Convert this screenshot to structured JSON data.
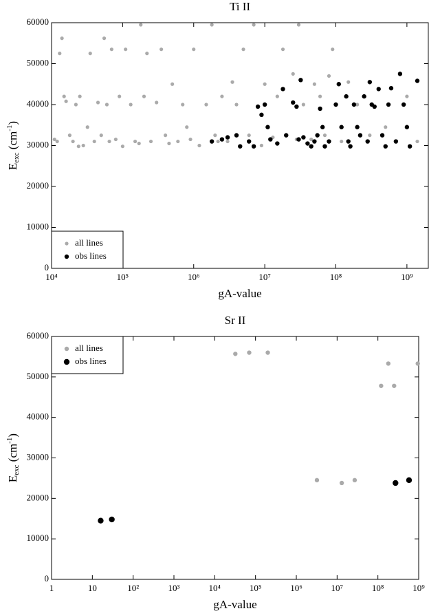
{
  "chart_data": [
    {
      "type": "scatter",
      "title": "Ti II",
      "xlabel": "gA-value",
      "ylabel": {
        "base": "E",
        "sub": "exc",
        "mid": " (cm",
        "sup": "-1",
        "end": ")"
      },
      "log_x": true,
      "legend": "lower left",
      "xlim": [
        10000,
        2000000000
      ],
      "ylim": [
        0,
        60000
      ],
      "xticks": [
        {
          "value": 10000,
          "label": "10⁴"
        },
        {
          "value": 100000,
          "label": "10⁵"
        },
        {
          "value": 1000000,
          "label": "10⁶"
        },
        {
          "value": 10000000,
          "label": "10⁷"
        },
        {
          "value": 100000000,
          "label": "10⁸"
        },
        {
          "value": 1000000000,
          "label": "10⁹"
        }
      ],
      "yticks": [
        0,
        10000,
        20000,
        30000,
        40000,
        50000,
        60000
      ],
      "series": [
        {
          "name": "all lines",
          "color": "#aaaaaa",
          "x": [
            12000,
            13000,
            14000,
            15000,
            16000,
            18000,
            20000,
            22000,
            25000,
            28000,
            32000,
            35000,
            40000,
            45000,
            50000,
            55000,
            60000,
            70000,
            80000,
            90000,
            100000,
            110000,
            130000,
            150000,
            180000,
            200000,
            220000,
            250000,
            300000,
            350000,
            400000,
            500000,
            600000,
            700000,
            800000,
            1000000,
            1200000,
            1500000,
            1800000,
            2000000,
            2500000,
            3000000,
            3500000,
            4000000,
            5000000,
            6000000,
            7000000,
            8000000,
            10000000,
            12000000,
            15000000,
            18000000,
            20000000,
            25000000,
            30000000,
            35000000,
            40000000,
            50000000,
            60000000,
            70000000,
            80000000,
            90000000,
            120000000,
            150000000,
            200000000,
            300000000,
            500000000,
            700000000,
            1000000000,
            1400000000,
            11000,
            24000,
            65000,
            170000,
            450000,
            900000,
            2200000,
            4500000,
            9000000,
            13000000,
            28000000,
            45000000
          ],
          "values": [
            31000,
            52500,
            56200,
            42000,
            40800,
            32500,
            31000,
            40000,
            42000,
            30000,
            34500,
            52500,
            31000,
            40500,
            32500,
            56200,
            40000,
            53500,
            31500,
            42000,
            29800,
            53500,
            40000,
            31000,
            59500,
            42000,
            52500,
            31000,
            40500,
            53500,
            32500,
            45000,
            31000,
            40000,
            34500,
            53500,
            30000,
            40000,
            59500,
            32500,
            42000,
            31000,
            45500,
            40000,
            53500,
            32500,
            59500,
            39500,
            45000,
            31500,
            42000,
            53500,
            32500,
            47500,
            59500,
            40000,
            30500,
            45000,
            42000,
            32500,
            47000,
            53500,
            31000,
            45500,
            40000,
            32500,
            34500,
            31000,
            42000,
            31000,
            31500,
            29800,
            31000,
            30500,
            30500,
            31500,
            31000,
            29800,
            30000,
            32000,
            31500,
            31500
          ]
        },
        {
          "name": "obs lines",
          "color": "#000000",
          "x": [
            1800000,
            2500000,
            3000000,
            4000000,
            4500000,
            6000000,
            7000000,
            8000000,
            9000000,
            10000000,
            11000000,
            12000000,
            15000000,
            18000000,
            20000000,
            25000000,
            28000000,
            30000000,
            32000000,
            35000000,
            40000000,
            45000000,
            50000000,
            55000000,
            60000000,
            65000000,
            70000000,
            80000000,
            100000000,
            110000000,
            120000000,
            140000000,
            150000000,
            160000000,
            180000000,
            200000000,
            220000000,
            250000000,
            280000000,
            300000000,
            320000000,
            350000000,
            400000000,
            450000000,
            500000000,
            550000000,
            600000000,
            700000000,
            800000000,
            900000000,
            1000000000,
            1100000000,
            1400000000
          ],
          "values": [
            31000,
            31500,
            32000,
            32500,
            29800,
            31000,
            29800,
            39500,
            37500,
            40000,
            34500,
            31500,
            30500,
            43800,
            32500,
            40500,
            39500,
            31500,
            46000,
            32000,
            30500,
            29800,
            31000,
            32500,
            39000,
            34500,
            29800,
            31000,
            40000,
            45000,
            34500,
            42000,
            31000,
            29800,
            40000,
            34500,
            32500,
            42000,
            31000,
            45500,
            40000,
            39500,
            43800,
            32500,
            29800,
            40000,
            44000,
            31000,
            47500,
            40000,
            34500,
            29800,
            45800
          ]
        }
      ]
    },
    {
      "type": "scatter",
      "title": "Sr II",
      "xlabel": "gA-value",
      "ylabel": {
        "base": "E",
        "sub": "exc",
        "mid": " (cm",
        "sup": "-1",
        "end": ")"
      },
      "log_x": true,
      "legend": "upper left",
      "xlim": [
        1,
        1000000000
      ],
      "ylim": [
        0,
        60000
      ],
      "xticks": [
        1,
        10,
        {
          "value": 100,
          "label": "10²"
        },
        {
          "value": 1000,
          "label": "10³"
        },
        {
          "value": 10000,
          "label": "10⁴"
        },
        {
          "value": 100000,
          "label": "10⁵"
        },
        {
          "value": 1000000,
          "label": "10⁶"
        },
        {
          "value": 10000000,
          "label": "10⁷"
        },
        {
          "value": 100000000,
          "label": "10⁸"
        },
        {
          "value": 1000000000,
          "label": "10⁹"
        }
      ],
      "yticks": [
        0,
        10000,
        20000,
        30000,
        40000,
        50000,
        60000
      ],
      "series": [
        {
          "name": "all lines",
          "color": "#aaaaaa",
          "x": [
            32000,
            70000,
            200000,
            3200000,
            13000000,
            27000000,
            120000000,
            180000000,
            250000000,
            950000000
          ],
          "values": [
            55700,
            56000,
            56000,
            24500,
            23800,
            24500,
            47800,
            53300,
            47800,
            53300
          ]
        },
        {
          "name": "obs lines",
          "color": "#000000",
          "x": [
            16,
            30,
            270000000,
            580000000
          ],
          "values": [
            14500,
            14800,
            23800,
            24500
          ]
        }
      ]
    }
  ]
}
